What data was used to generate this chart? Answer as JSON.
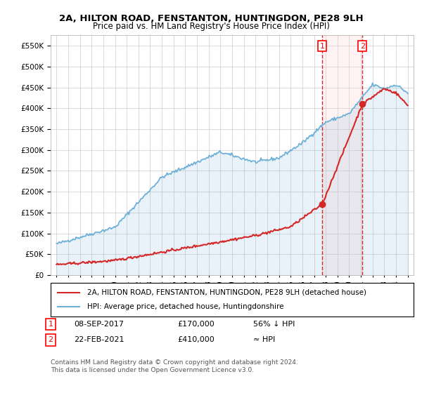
{
  "title": "2A, HILTON ROAD, FENSTANTON, HUNTINGDON, PE28 9LH",
  "subtitle": "Price paid vs. HM Land Registry's House Price Index (HPI)",
  "hpi_color": "#6baed6",
  "price_color": "#d62728",
  "annotation_color": "#d62728",
  "background_color": "#ffffff",
  "grid_color": "#cccccc",
  "legend_label_red": "2A, HILTON ROAD, FENSTANTON, HUNTINGDON, PE28 9LH (detached house)",
  "legend_label_blue": "HPI: Average price, detached house, Huntingdonshire",
  "annotation1": {
    "label": "1",
    "date_str": "08-SEP-2017",
    "price": 170000,
    "note": "56% ↓ HPI",
    "x_year": 2017.69
  },
  "annotation2": {
    "label": "2",
    "date_str": "22-FEB-2021",
    "price": 410000,
    "note": "≈ HPI",
    "x_year": 2021.13
  },
  "footer": "Contains HM Land Registry data © Crown copyright and database right 2024.\nThis data is licensed under the Open Government Licence v3.0.",
  "ylim": [
    0,
    575000
  ],
  "yticks": [
    0,
    50000,
    100000,
    150000,
    200000,
    250000,
    300000,
    350000,
    400000,
    450000,
    500000,
    550000
  ],
  "xlim": [
    1994.5,
    2025.5
  ],
  "xticks": [
    1995,
    1996,
    1997,
    1998,
    1999,
    2000,
    2001,
    2002,
    2003,
    2004,
    2005,
    2006,
    2007,
    2008,
    2009,
    2010,
    2011,
    2012,
    2013,
    2014,
    2015,
    2016,
    2017,
    2018,
    2019,
    2020,
    2021,
    2022,
    2023,
    2024,
    2025
  ]
}
